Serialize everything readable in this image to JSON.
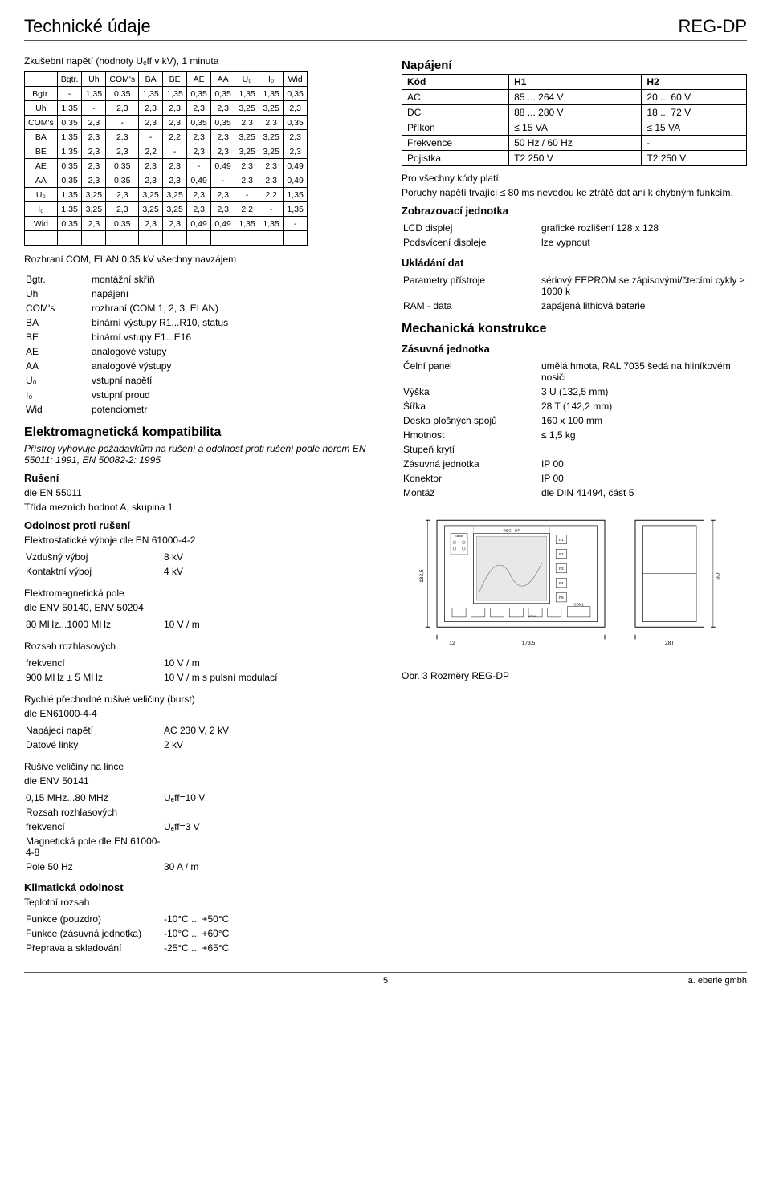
{
  "header": {
    "left": "Technické údaje",
    "right": "REG-DP"
  },
  "left": {
    "test_title": "Zkušební napětí (hodnoty Uₑff v kV), 1 minuta",
    "matrix": {
      "headers": [
        "",
        "Bgtr.",
        "Uh",
        "COM's",
        "BA",
        "BE",
        "AE",
        "AA",
        "U₀",
        "I₀",
        "Wid"
      ],
      "rows": [
        [
          "Bgtr.",
          "-",
          "1,35",
          "0,35",
          "1,35",
          "1,35",
          "0,35",
          "0,35",
          "1,35",
          "1,35",
          "0,35"
        ],
        [
          "Uh",
          "1,35",
          "-",
          "2,3",
          "2,3",
          "2,3",
          "2,3",
          "2,3",
          "3,25",
          "3,25",
          "2,3"
        ],
        [
          "COM's",
          "0,35",
          "2,3",
          "-",
          "2,3",
          "2,3",
          "0,35",
          "0,35",
          "2,3",
          "2,3",
          "0,35"
        ],
        [
          "BA",
          "1,35",
          "2,3",
          "2,3",
          "-",
          "2,2",
          "2,3",
          "2,3",
          "3,25",
          "3,25",
          "2,3"
        ],
        [
          "BE",
          "1,35",
          "2,3",
          "2,3",
          "2,2",
          "-",
          "2,3",
          "2,3",
          "3,25",
          "3,25",
          "2,3"
        ],
        [
          "AE",
          "0,35",
          "2,3",
          "0,35",
          "2,3",
          "2,3",
          "-",
          "0,49",
          "2,3",
          "2,3",
          "0,49"
        ],
        [
          "AA",
          "0,35",
          "2,3",
          "0,35",
          "2,3",
          "2,3",
          "0,49",
          "-",
          "2,3",
          "2,3",
          "0,49"
        ],
        [
          "U₀",
          "1,35",
          "3,25",
          "2,3",
          "3,25",
          "3,25",
          "2,3",
          "2,3",
          "-",
          "2,2",
          "1,35"
        ],
        [
          "I₀",
          "1,35",
          "3,25",
          "2,3",
          "3,25",
          "3,25",
          "2,3",
          "2,3",
          "2,2",
          "-",
          "1,35"
        ],
        [
          "Wid",
          "0,35",
          "2,3",
          "0,35",
          "2,3",
          "2,3",
          "0,49",
          "0,49",
          "1,35",
          "1,35",
          "-"
        ]
      ]
    },
    "rozhrani_line": "Rozhraní COM, ELAN   0,35 kV všechny navzájem",
    "defs": [
      [
        "Bgtr.",
        "montážní skříň"
      ],
      [
        "Uh",
        "napájení"
      ],
      [
        "COM's",
        "rozhraní (COM 1, 2, 3, ELAN)"
      ],
      [
        "BA",
        "binární výstupy R1...R10, status"
      ],
      [
        "BE",
        "binární vstupy E1...E16"
      ],
      [
        "AE",
        "analogové vstupy"
      ],
      [
        "AA",
        "analogové výstupy"
      ],
      [
        "U₀",
        "vstupní napětí"
      ],
      [
        "I₀",
        "vstupní proud"
      ],
      [
        "Wid",
        "potenciometr"
      ]
    ],
    "emc_title": "Elektromagnetická kompatibilita",
    "emc_para": "Přístroj vyhovuje požadavkům na rušení a odolnost proti rušení podle norem EN 55011: 1991, EN 50082-2: 1995",
    "ruseni_title": "Rušení",
    "ruseni_text1": "dle EN 55011",
    "ruseni_text2": "Třída mezních hodnot A, skupina 1",
    "odolnost_title": "Odolnost proti rušení",
    "odolnost_sub": "Elektrostatické výboje dle EN 61000-4-2",
    "odolnost_rows": [
      [
        "Vzdušný výboj",
        "8 kV"
      ],
      [
        "Kontaktní výboj",
        "4 kV"
      ]
    ],
    "emfield_sub": "Elektromagnetická pole",
    "emfield_sub2": "dle ENV 50140, ENV 50204",
    "emfield_rows": [
      [
        "80 MHz...1000 MHz",
        "10 V / m"
      ]
    ],
    "rozhlas_sub": "Rozsah rozhlasových",
    "rozhlas_rows": [
      [
        "frekvencí",
        "10 V / m"
      ],
      [
        "900 MHz ± 5 MHz",
        "10 V / m s pulsní modulací"
      ]
    ],
    "burst_sub": "Rychlé přechodné rušivé veličiny (burst)",
    "burst_sub2": "dle EN61000-4-4",
    "burst_rows": [
      [
        "Napájecí napětí",
        "AC 230 V, 2 kV"
      ],
      [
        "Datové linky",
        "2 kV"
      ]
    ],
    "linka_sub": "Rušivé veličiny na lince",
    "linka_sub2": "dle ENV 50141",
    "linka_rows": [
      [
        "0,15 MHz...80 MHz",
        "Uₑff=10 V"
      ],
      [
        "Rozsah rozhlasových",
        ""
      ],
      [
        "frekvencí",
        "Uₑff=3 V"
      ],
      [
        "Magnetická pole dle EN 61000-4-8",
        ""
      ],
      [
        "Pole 50 Hz",
        "30 A / m"
      ]
    ],
    "klima_title": "Klimatická odolnost",
    "klima_sub": "Teplotní rozsah",
    "klima_rows": [
      [
        "  Funkce (pouzdro)",
        "-10°C ... +50°C"
      ],
      [
        "  Funkce (zásuvná jednotka)",
        "-10°C ... +60°C"
      ],
      [
        "  Přeprava a skladování",
        "-25°C ... +65°C"
      ]
    ]
  },
  "right": {
    "napajeni_title": "Napájení",
    "power_table": {
      "headers": [
        "Kód",
        "H1",
        "H2"
      ],
      "rows": [
        [
          "AC",
          "85 ... 264 V",
          "20 ... 60 V"
        ],
        [
          "DC",
          "88 ... 280 V",
          "18 ... 72 V"
        ],
        [
          "Příkon",
          "≤ 15 VA",
          "≤ 15 VA"
        ],
        [
          "Frekvence",
          "50 Hz / 60 Hz",
          "-"
        ],
        [
          "Pojistka",
          "T2 250 V",
          "T2 250 V"
        ]
      ]
    },
    "kody_line": "Pro všechny kódy platí:",
    "kody_para": "Poruchy napětí trvající ≤ 80 ms nevedou ke ztrátě dat ani k chybným funkcím.",
    "zobraz_title": "Zobrazovací jednotka",
    "zobraz_rows": [
      [
        "LCD displej",
        "grafické rozlišení 128 x 128"
      ],
      [
        "Podsvícení displeje",
        "lze vypnout"
      ]
    ],
    "uklad_title": "Ukládání dat",
    "uklad_rows": [
      [
        "Parametry přístroje",
        "sériový EEPROM se zápisovými/čtecími cykly ≥ 1000 k"
      ],
      [
        "RAM - data",
        "zapájená lithiová baterie"
      ]
    ],
    "mech_title": "Mechanická konstrukce",
    "zasuv_title": "Zásuvná jednotka",
    "mech_rows": [
      [
        "Čelní panel",
        "umělá hmota, RAL 7035 šedá na hliníkovém nosiči"
      ],
      [
        "Výška",
        "3 U (132,5 mm)"
      ],
      [
        "Šířka",
        "28 T (142,2 mm)"
      ],
      [
        "Deska plošných spojů",
        "160 x 100 mm"
      ],
      [
        "Hmotnost",
        "≤ 1,5 kg"
      ],
      [
        "Stupeň krytí",
        ""
      ],
      [
        "  Zásuvná jednotka",
        "IP 00"
      ],
      [
        "  Konektor",
        "IP 00"
      ],
      [
        "Montáž",
        "dle DIN 41494, část 5"
      ]
    ],
    "fig_caption": "Obr. 3 Rozměry REG-DP",
    "diagram": {
      "labels": {
        "reg": "REG - DP",
        "status": "Status",
        "com1": "COM1",
        "menu": "MENU"
      },
      "dims": {
        "h": "132,5",
        "w": "173,5",
        "u": "3U",
        "t": "28T",
        "gap": "12"
      },
      "fkeys": [
        "F1",
        "F2",
        "F3",
        "F4",
        "F5"
      ]
    }
  },
  "footer": {
    "page": "5",
    "brand": "a. eberle gmbh"
  }
}
